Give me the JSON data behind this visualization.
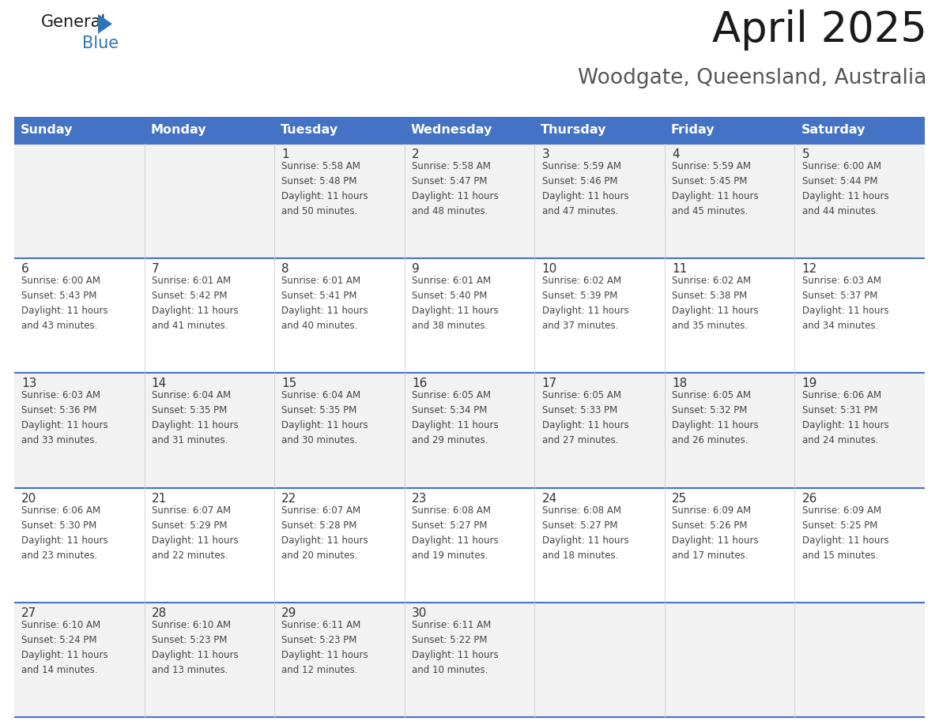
{
  "title": "April 2025",
  "subtitle": "Woodgate, Queensland, Australia",
  "header_bg": "#4472C4",
  "header_text": "#FFFFFF",
  "row_bg_odd": "#F2F2F2",
  "row_bg_even": "#FFFFFF",
  "separator_color": "#4472C4",
  "separator_light": "#AAAAAA",
  "days_of_week": [
    "Sunday",
    "Monday",
    "Tuesday",
    "Wednesday",
    "Thursday",
    "Friday",
    "Saturday"
  ],
  "calendar": [
    [
      {
        "day": null,
        "info": null
      },
      {
        "day": null,
        "info": null
      },
      {
        "day": 1,
        "info": "Sunrise: 5:58 AM\nSunset: 5:48 PM\nDaylight: 11 hours\nand 50 minutes."
      },
      {
        "day": 2,
        "info": "Sunrise: 5:58 AM\nSunset: 5:47 PM\nDaylight: 11 hours\nand 48 minutes."
      },
      {
        "day": 3,
        "info": "Sunrise: 5:59 AM\nSunset: 5:46 PM\nDaylight: 11 hours\nand 47 minutes."
      },
      {
        "day": 4,
        "info": "Sunrise: 5:59 AM\nSunset: 5:45 PM\nDaylight: 11 hours\nand 45 minutes."
      },
      {
        "day": 5,
        "info": "Sunrise: 6:00 AM\nSunset: 5:44 PM\nDaylight: 11 hours\nand 44 minutes."
      }
    ],
    [
      {
        "day": 6,
        "info": "Sunrise: 6:00 AM\nSunset: 5:43 PM\nDaylight: 11 hours\nand 43 minutes."
      },
      {
        "day": 7,
        "info": "Sunrise: 6:01 AM\nSunset: 5:42 PM\nDaylight: 11 hours\nand 41 minutes."
      },
      {
        "day": 8,
        "info": "Sunrise: 6:01 AM\nSunset: 5:41 PM\nDaylight: 11 hours\nand 40 minutes."
      },
      {
        "day": 9,
        "info": "Sunrise: 6:01 AM\nSunset: 5:40 PM\nDaylight: 11 hours\nand 38 minutes."
      },
      {
        "day": 10,
        "info": "Sunrise: 6:02 AM\nSunset: 5:39 PM\nDaylight: 11 hours\nand 37 minutes."
      },
      {
        "day": 11,
        "info": "Sunrise: 6:02 AM\nSunset: 5:38 PM\nDaylight: 11 hours\nand 35 minutes."
      },
      {
        "day": 12,
        "info": "Sunrise: 6:03 AM\nSunset: 5:37 PM\nDaylight: 11 hours\nand 34 minutes."
      }
    ],
    [
      {
        "day": 13,
        "info": "Sunrise: 6:03 AM\nSunset: 5:36 PM\nDaylight: 11 hours\nand 33 minutes."
      },
      {
        "day": 14,
        "info": "Sunrise: 6:04 AM\nSunset: 5:35 PM\nDaylight: 11 hours\nand 31 minutes."
      },
      {
        "day": 15,
        "info": "Sunrise: 6:04 AM\nSunset: 5:35 PM\nDaylight: 11 hours\nand 30 minutes."
      },
      {
        "day": 16,
        "info": "Sunrise: 6:05 AM\nSunset: 5:34 PM\nDaylight: 11 hours\nand 29 minutes."
      },
      {
        "day": 17,
        "info": "Sunrise: 6:05 AM\nSunset: 5:33 PM\nDaylight: 11 hours\nand 27 minutes."
      },
      {
        "day": 18,
        "info": "Sunrise: 6:05 AM\nSunset: 5:32 PM\nDaylight: 11 hours\nand 26 minutes."
      },
      {
        "day": 19,
        "info": "Sunrise: 6:06 AM\nSunset: 5:31 PM\nDaylight: 11 hours\nand 24 minutes."
      }
    ],
    [
      {
        "day": 20,
        "info": "Sunrise: 6:06 AM\nSunset: 5:30 PM\nDaylight: 11 hours\nand 23 minutes."
      },
      {
        "day": 21,
        "info": "Sunrise: 6:07 AM\nSunset: 5:29 PM\nDaylight: 11 hours\nand 22 minutes."
      },
      {
        "day": 22,
        "info": "Sunrise: 6:07 AM\nSunset: 5:28 PM\nDaylight: 11 hours\nand 20 minutes."
      },
      {
        "day": 23,
        "info": "Sunrise: 6:08 AM\nSunset: 5:27 PM\nDaylight: 11 hours\nand 19 minutes."
      },
      {
        "day": 24,
        "info": "Sunrise: 6:08 AM\nSunset: 5:27 PM\nDaylight: 11 hours\nand 18 minutes."
      },
      {
        "day": 25,
        "info": "Sunrise: 6:09 AM\nSunset: 5:26 PM\nDaylight: 11 hours\nand 17 minutes."
      },
      {
        "day": 26,
        "info": "Sunrise: 6:09 AM\nSunset: 5:25 PM\nDaylight: 11 hours\nand 15 minutes."
      }
    ],
    [
      {
        "day": 27,
        "info": "Sunrise: 6:10 AM\nSunset: 5:24 PM\nDaylight: 11 hours\nand 14 minutes."
      },
      {
        "day": 28,
        "info": "Sunrise: 6:10 AM\nSunset: 5:23 PM\nDaylight: 11 hours\nand 13 minutes."
      },
      {
        "day": 29,
        "info": "Sunrise: 6:11 AM\nSunset: 5:23 PM\nDaylight: 11 hours\nand 12 minutes."
      },
      {
        "day": 30,
        "info": "Sunrise: 6:11 AM\nSunset: 5:22 PM\nDaylight: 11 hours\nand 10 minutes."
      },
      {
        "day": null,
        "info": null
      },
      {
        "day": null,
        "info": null
      },
      {
        "day": null,
        "info": null
      }
    ]
  ],
  "logo_triangle_color": "#2E75B6",
  "title_fontsize": 38,
  "subtitle_fontsize": 19,
  "dow_fontsize": 11.5,
  "day_num_fontsize": 11,
  "cell_fontsize": 8.5
}
